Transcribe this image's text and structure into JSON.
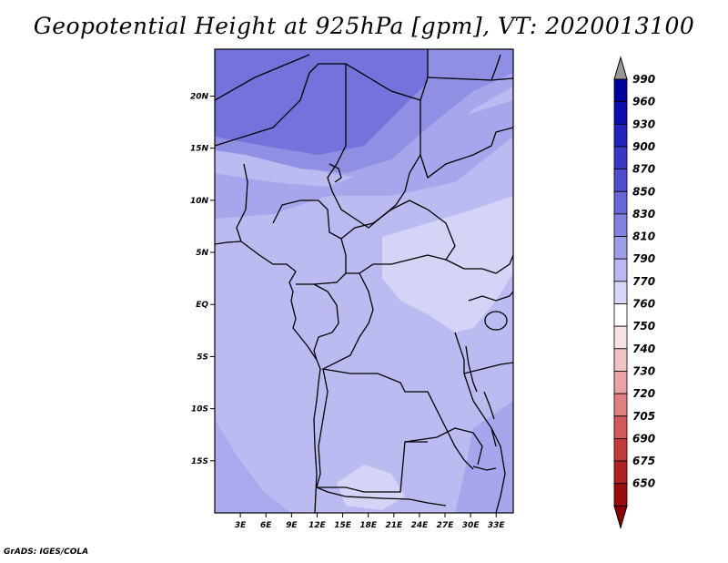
{
  "title": "Geopotential Height at 925hPa [gpm], VT: 2020013100",
  "credit": "GrADS: IGES/COLA",
  "map": {
    "lat_ticks": [
      "20N",
      "15N",
      "10N",
      "5N",
      "EQ",
      "5S",
      "10S",
      "15S"
    ],
    "lat_values": [
      20,
      15,
      10,
      5,
      0,
      -5,
      -10,
      -15
    ],
    "lon_ticks": [
      "3E",
      "6E",
      "9E",
      "12E",
      "15E",
      "18E",
      "21E",
      "24E",
      "27E",
      "30E",
      "33E"
    ],
    "lon_values": [
      3,
      6,
      9,
      12,
      15,
      18,
      21,
      24,
      27,
      30,
      33
    ],
    "lon_range": [
      0,
      35
    ],
    "lat_range": [
      -20,
      24.5
    ]
  },
  "colorbar": {
    "levels": [
      "990",
      "960",
      "930",
      "900",
      "870",
      "850",
      "830",
      "810",
      "790",
      "770",
      "760",
      "750",
      "740",
      "730",
      "720",
      "705",
      "690",
      "675",
      "650"
    ],
    "colors": [
      "#00009a",
      "#0c0cb0",
      "#2222bc",
      "#3838c6",
      "#4e4ed0",
      "#6767da",
      "#8282e2",
      "#9d9dea",
      "#b9b9f1",
      "#d6d6f7",
      "#ffffff",
      "#f9e2e2",
      "#f2c2c2",
      "#eaa2a2",
      "#e08080",
      "#d25a5a",
      "#c23a3a",
      "#ae2222",
      "#980e0e"
    ],
    "top_arrow_color": "#999999",
    "bottom_arrow_color": "#8b0000"
  },
  "fills": {
    "sahara_dark": "#7373db",
    "mid_purple": "#8f8fe4",
    "light": "#a6a6ec",
    "lighter": "#bbbbf2",
    "lightest": "#d4d4f7",
    "ocean": "#a9a9ee"
  }
}
